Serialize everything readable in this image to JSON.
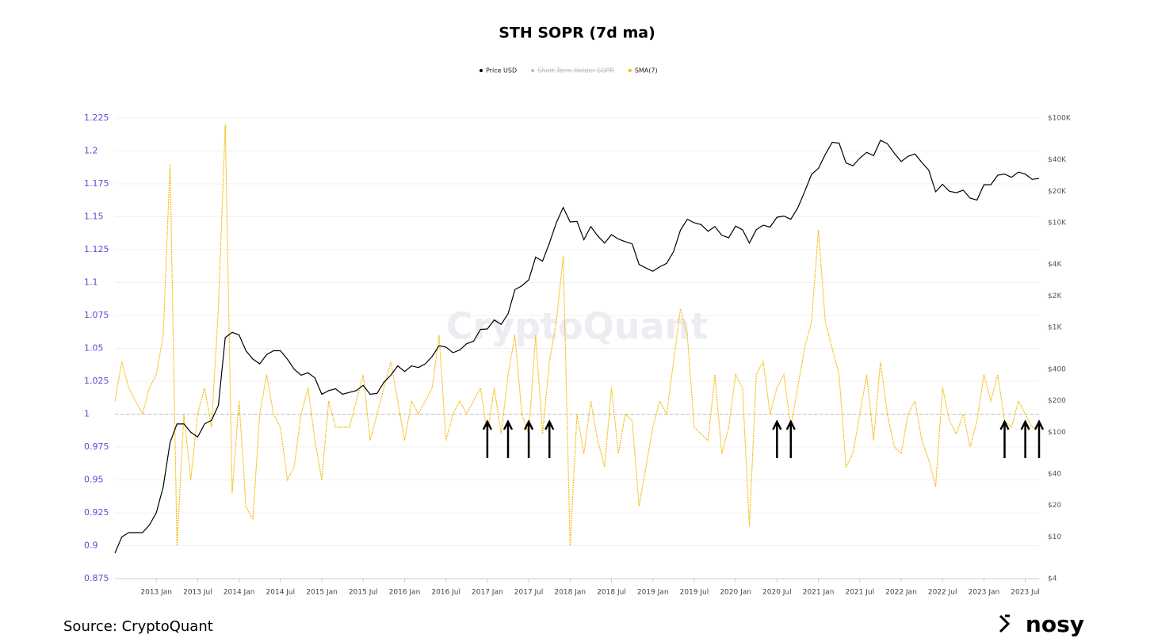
{
  "chart_data": {
    "type": "line",
    "title": "STH SOPR (7d ma)",
    "watermark": "CryptoQuant",
    "hidden_legend": [
      "Short Term Holder SOPR"
    ],
    "x": [
      "2012-07",
      "2012-08",
      "2012-09",
      "2012-10",
      "2012-11",
      "2012-12",
      "2013-01",
      "2013-02",
      "2013-03",
      "2013-04",
      "2013-05",
      "2013-06",
      "2013-07",
      "2013-08",
      "2013-09",
      "2013-10",
      "2013-11",
      "2013-12",
      "2014-01",
      "2014-02",
      "2014-03",
      "2014-04",
      "2014-05",
      "2014-06",
      "2014-07",
      "2014-08",
      "2014-09",
      "2014-10",
      "2014-11",
      "2014-12",
      "2015-01",
      "2015-02",
      "2015-03",
      "2015-04",
      "2015-05",
      "2015-06",
      "2015-07",
      "2015-08",
      "2015-09",
      "2015-10",
      "2015-11",
      "2015-12",
      "2016-01",
      "2016-02",
      "2016-03",
      "2016-04",
      "2016-05",
      "2016-06",
      "2016-07",
      "2016-08",
      "2016-09",
      "2016-10",
      "2016-11",
      "2016-12",
      "2017-01",
      "2017-02",
      "2017-03",
      "2017-04",
      "2017-05",
      "2017-06",
      "2017-07",
      "2017-08",
      "2017-09",
      "2017-10",
      "2017-11",
      "2017-12",
      "2018-01",
      "2018-02",
      "2018-03",
      "2018-04",
      "2018-05",
      "2018-06",
      "2018-07",
      "2018-08",
      "2018-09",
      "2018-10",
      "2018-11",
      "2018-12",
      "2019-01",
      "2019-02",
      "2019-03",
      "2019-04",
      "2019-05",
      "2019-06",
      "2019-07",
      "2019-08",
      "2019-09",
      "2019-10",
      "2019-11",
      "2019-12",
      "2020-01",
      "2020-02",
      "2020-03",
      "2020-04",
      "2020-05",
      "2020-06",
      "2020-07",
      "2020-08",
      "2020-09",
      "2020-10",
      "2020-11",
      "2020-12",
      "2021-01",
      "2021-02",
      "2021-03",
      "2021-04",
      "2021-05",
      "2021-06",
      "2021-07",
      "2021-08",
      "2021-09",
      "2021-10",
      "2021-11",
      "2021-12",
      "2022-01",
      "2022-02",
      "2022-03",
      "2022-04",
      "2022-05",
      "2022-06",
      "2022-07",
      "2022-08",
      "2022-09",
      "2022-10",
      "2022-11",
      "2022-12",
      "2023-01",
      "2023-02",
      "2023-03",
      "2023-04",
      "2023-05",
      "2023-06",
      "2023-07",
      "2023-08",
      "2023-09"
    ],
    "series": [
      {
        "name": "Price USD",
        "color": "#000000",
        "axis": "y2",
        "values": [
          7,
          10,
          11,
          11,
          11,
          13,
          17,
          30,
          80,
          120,
          120,
          100,
          90,
          120,
          130,
          180,
          800,
          900,
          850,
          600,
          500,
          450,
          550,
          600,
          600,
          500,
          400,
          350,
          370,
          330,
          230,
          250,
          260,
          230,
          240,
          250,
          280,
          230,
          235,
          300,
          350,
          430,
          380,
          430,
          415,
          450,
          530,
          670,
          650,
          575,
          610,
          700,
          740,
          960,
          970,
          1180,
          1070,
          1350,
          2300,
          2500,
          2850,
          4700,
          4300,
          6400,
          10000,
          14000,
          10200,
          10300,
          6900,
          9200,
          7500,
          6400,
          7700,
          7000,
          6600,
          6300,
          4000,
          3700,
          3450,
          3800,
          4100,
          5300,
          8500,
          10800,
          10000,
          9600,
          8300,
          9200,
          7600,
          7200,
          9300,
          8600,
          6400,
          8600,
          9500,
          9100,
          11300,
          11600,
          10800,
          13800,
          19700,
          29000,
          33100,
          45000,
          58800,
          57700,
          37300,
          35000,
          41500,
          47100,
          43800,
          61300,
          57000,
          46300,
          38500,
          43200,
          45500,
          37700,
          31800,
          19800,
          23300,
          20000,
          19400,
          20500,
          17200,
          16500,
          23100,
          23100,
          28500,
          29200,
          27200,
          30500,
          29200,
          26000,
          26500
        ]
      },
      {
        "name": "SMA(7)",
        "color": "#f5b800",
        "axis": "y",
        "values": [
          1.01,
          1.04,
          1.02,
          1.01,
          1.0,
          1.02,
          1.03,
          1.06,
          1.19,
          0.9,
          1.0,
          0.95,
          1.0,
          1.02,
          0.99,
          1.08,
          1.22,
          0.94,
          1.01,
          0.93,
          0.92,
          1.0,
          1.03,
          1.0,
          0.99,
          0.95,
          0.96,
          1.0,
          1.02,
          0.98,
          0.95,
          1.01,
          0.99,
          0.99,
          0.99,
          1.01,
          1.03,
          0.98,
          1.0,
          1.02,
          1.04,
          1.01,
          0.98,
          1.01,
          1.0,
          1.01,
          1.02,
          1.06,
          0.98,
          1.0,
          1.01,
          1.0,
          1.01,
          1.02,
          0.985,
          1.02,
          0.985,
          1.03,
          1.06,
          1.0,
          0.985,
          1.06,
          0.985,
          1.04,
          1.07,
          1.12,
          0.9,
          1.0,
          0.97,
          1.01,
          0.98,
          0.96,
          1.02,
          0.97,
          1.0,
          0.995,
          0.93,
          0.96,
          0.99,
          1.01,
          1.0,
          1.04,
          1.08,
          1.06,
          0.99,
          0.985,
          0.98,
          1.03,
          0.97,
          0.99,
          1.03,
          1.02,
          0.915,
          1.03,
          1.04,
          1.0,
          1.02,
          1.03,
          0.99,
          1.02,
          1.05,
          1.07,
          1.14,
          1.07,
          1.05,
          1.03,
          0.96,
          0.97,
          1.0,
          1.03,
          0.98,
          1.04,
          1.0,
          0.975,
          0.97,
          1.0,
          1.01,
          0.98,
          0.965,
          0.945,
          1.02,
          0.995,
          0.985,
          1.0,
          0.975,
          0.995,
          1.03,
          1.01,
          1.03,
          0.995,
          0.99,
          1.01,
          1.0,
          0.99,
          0.99
        ]
      }
    ],
    "xlim": [
      "2012-07",
      "2023-09"
    ],
    "xticks": [
      {
        "value": "2013-01",
        "label": "2013 Jan"
      },
      {
        "value": "2013-07",
        "label": "2013 Jul"
      },
      {
        "value": "2014-01",
        "label": "2014 Jan"
      },
      {
        "value": "2014-07",
        "label": "2014 Jul"
      },
      {
        "value": "2015-01",
        "label": "2015 Jan"
      },
      {
        "value": "2015-07",
        "label": "2015 Jul"
      },
      {
        "value": "2016-01",
        "label": "2016 Jan"
      },
      {
        "value": "2016-07",
        "label": "2016 Jul"
      },
      {
        "value": "2017-01",
        "label": "2017 Jan"
      },
      {
        "value": "2017-07",
        "label": "2017 Jul"
      },
      {
        "value": "2018-01",
        "label": "2018 Jan"
      },
      {
        "value": "2018-07",
        "label": "2018 Jul"
      },
      {
        "value": "2019-01",
        "label": "2019 Jan"
      },
      {
        "value": "2019-07",
        "label": "2019 Jul"
      },
      {
        "value": "2020-01",
        "label": "2020 Jan"
      },
      {
        "value": "2020-07",
        "label": "2020 Jul"
      },
      {
        "value": "2021-01",
        "label": "2021 Jan"
      },
      {
        "value": "2021-07",
        "label": "2021 Jul"
      },
      {
        "value": "2022-01",
        "label": "2022 Jan"
      },
      {
        "value": "2022-07",
        "label": "2022 Jul"
      },
      {
        "value": "2023-01",
        "label": "2023 Jan"
      },
      {
        "value": "2023-07",
        "label": "2023 Jul"
      }
    ],
    "ylim": [
      0.875,
      1.225
    ],
    "yticks": [
      0.875,
      0.9,
      0.925,
      0.95,
      0.975,
      1,
      1.025,
      1.05,
      1.075,
      1.1,
      1.125,
      1.15,
      1.175,
      1.2,
      1.225
    ],
    "y2lim": [
      4,
      100000
    ],
    "y2log": true,
    "y2ticks": [
      {
        "value": 4,
        "label": "$4"
      },
      {
        "value": 10,
        "label": "$10"
      },
      {
        "value": 20,
        "label": "$20"
      },
      {
        "value": 40,
        "label": "$40"
      },
      {
        "value": 100,
        "label": "$100"
      },
      {
        "value": 200,
        "label": "$200"
      },
      {
        "value": 400,
        "label": "$400"
      },
      {
        "value": 1000,
        "label": "$1K"
      },
      {
        "value": 2000,
        "label": "$2K"
      },
      {
        "value": 4000,
        "label": "$4K"
      },
      {
        "value": 10000,
        "label": "$10K"
      },
      {
        "value": 20000,
        "label": "$20K"
      },
      {
        "value": 40000,
        "label": "$40K"
      },
      {
        "value": 100000,
        "label": "$100K"
      }
    ],
    "grid": true,
    "reference_line": 1,
    "arrows": [
      "2017-01",
      "2017-04",
      "2017-07",
      "2017-10",
      "2020-07",
      "2020-09",
      "2023-04",
      "2023-07",
      "2023-09"
    ]
  },
  "footer": {
    "source": "Source: CryptoQuant",
    "brand": "nosy"
  }
}
